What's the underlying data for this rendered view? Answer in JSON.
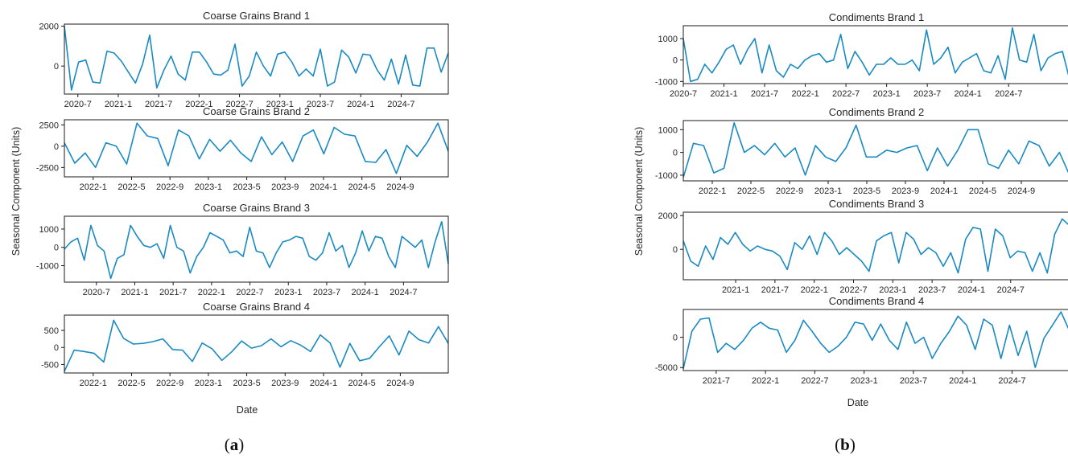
{
  "panels": [
    {
      "caption_prefix": "(",
      "caption_letter": "a",
      "caption_suffix": ")",
      "ylabel": "Seasonal Component (Units)",
      "xlabel": "Date"
    },
    {
      "caption_prefix": "(",
      "caption_letter": "b",
      "caption_suffix": ")",
      "ylabel": "Seasonal Component (Units)",
      "xlabel": "Date"
    }
  ],
  "colors": {
    "line": "#1a8ac2",
    "axis": "#1a1a1a",
    "text": "#262626"
  },
  "chart_data": [
    {
      "type": "line",
      "title": "Coarse Grains Brand 1",
      "x_start": "2020-05",
      "x_end": "2025-02",
      "xticks": [
        "2020-7",
        "2021-1",
        "2021-7",
        "2022-1",
        "2022-7",
        "2023-1",
        "2023-7",
        "2024-1",
        "2024-7"
      ],
      "yticks": [
        0,
        2000
      ],
      "ylim": [
        -1400,
        2100
      ],
      "series": [
        {
          "values": [
            2000,
            -1200,
            200,
            300,
            -800,
            -850,
            750,
            650,
            250,
            -300,
            -850,
            100,
            1550,
            -1100,
            -200,
            500,
            -400,
            -700,
            700,
            700,
            200,
            -400,
            -450,
            -200,
            1100,
            -1000,
            -500,
            700,
            0,
            -500,
            600,
            700,
            200,
            -500,
            -150,
            -500,
            850,
            -1000,
            -800,
            800,
            450,
            -350,
            600,
            550,
            -200,
            -700,
            350,
            -900,
            550,
            -950,
            -1000,
            900,
            900,
            -300,
            650
          ]
        }
      ]
    },
    {
      "type": "line",
      "title": "Coarse Grains Brand 2",
      "x_start": "2021-10",
      "x_end": "2025-02",
      "xticks": [
        "2022-1",
        "2022-5",
        "2022-9",
        "2023-1",
        "2023-5",
        "2023-9",
        "2024-1",
        "2024-5",
        "2024-9"
      ],
      "yticks": [
        -2500,
        0,
        2500
      ],
      "ylim": [
        -3600,
        3100
      ],
      "series": [
        {
          "values": [
            400,
            -2000,
            -800,
            -2500,
            400,
            0,
            -2100,
            2700,
            1200,
            900,
            -2300,
            1900,
            1200,
            -1500,
            800,
            -600,
            700,
            -800,
            -1800,
            1100,
            -1000,
            500,
            -1800,
            1200,
            1900,
            -900,
            2200,
            1400,
            1200,
            -1800,
            -1900,
            -400,
            -3200,
            100,
            -1200,
            500,
            2700,
            -600
          ]
        }
      ]
    },
    {
      "type": "line",
      "title": "Coarse Grains Brand 3",
      "x_start": "2020-02",
      "x_end": "2025-02",
      "xticks": [
        "2020-7",
        "2021-1",
        "2021-7",
        "2022-1",
        "2022-7",
        "2023-1",
        "2023-7",
        "2024-1",
        "2024-7"
      ],
      "yticks": [
        -1000,
        0,
        1000
      ],
      "ylim": [
        -1900,
        1700
      ],
      "series": [
        {
          "values": [
            -100,
            300,
            500,
            -700,
            1200,
            100,
            -200,
            -1700,
            -600,
            -400,
            1200,
            600,
            100,
            0,
            200,
            -600,
            1200,
            0,
            -200,
            -1400,
            -500,
            0,
            800,
            600,
            400,
            -300,
            -200,
            -500,
            1100,
            -200,
            -300,
            -1100,
            -300,
            300,
            400,
            600,
            500,
            -500,
            -700,
            -300,
            800,
            -200,
            100,
            -1100,
            -300,
            900,
            -200,
            600,
            500,
            -500,
            -1100,
            600,
            300,
            0,
            400,
            -1100,
            300,
            1400,
            -900
          ]
        }
      ]
    },
    {
      "type": "line",
      "title": "Coarse Grains Brand 4",
      "x_start": "2021-10",
      "x_end": "2025-02",
      "xticks": [
        "2022-1",
        "2022-5",
        "2022-9",
        "2023-1",
        "2023-5",
        "2023-9",
        "2024-1",
        "2024-5",
        "2024-9"
      ],
      "yticks": [
        -500,
        0,
        500
      ],
      "ylim": [
        -750,
        950
      ],
      "series": [
        {
          "values": [
            -700,
            -80,
            -120,
            -170,
            -430,
            800,
            270,
            100,
            120,
            170,
            250,
            -60,
            -80,
            -410,
            130,
            -40,
            -380,
            -130,
            190,
            -20,
            50,
            250,
            20,
            200,
            70,
            -120,
            370,
            130,
            -580,
            120,
            -390,
            -320,
            20,
            340,
            -220,
            480,
            230,
            130,
            610,
            120
          ]
        }
      ]
    },
    {
      "type": "line",
      "title": "Condiments Brand 1",
      "x_start": "2020-07",
      "x_end": "2025-04",
      "xticks": [
        "2020-7",
        "2021-1",
        "2021-7",
        "2022-1",
        "2022-7",
        "2023-1",
        "2023-7",
        "2024-1",
        "2024-7"
      ],
      "yticks": [
        -1000,
        0,
        1000
      ],
      "ylim": [
        -1100,
        1600
      ],
      "series": [
        {
          "values": [
            1000,
            -1000,
            -900,
            -200,
            -600,
            -100,
            500,
            700,
            -200,
            500,
            1000,
            -600,
            700,
            -500,
            -800,
            -200,
            -400,
            0,
            200,
            300,
            -100,
            0,
            1200,
            -400,
            400,
            -100,
            -700,
            -200,
            -200,
            100,
            -200,
            -200,
            0,
            -500,
            1400,
            -200,
            100,
            600,
            -600,
            -100,
            100,
            300,
            -500,
            -600,
            200,
            -900,
            1500,
            0,
            -100,
            1200,
            -500,
            100,
            300,
            400,
            -900
          ]
        }
      ]
    },
    {
      "type": "line",
      "title": "Condiments Brand 2",
      "x_start": "2021-10",
      "x_end": "2025-02",
      "xticks": [
        "2022-1",
        "2022-5",
        "2022-9",
        "2023-1",
        "2023-5",
        "2023-9",
        "2024-1",
        "2024-5",
        "2024-9"
      ],
      "yticks": [
        -1000,
        0,
        1000
      ],
      "ylim": [
        -1250,
        1400
      ],
      "series": [
        {
          "values": [
            -1100,
            400,
            300,
            -900,
            -700,
            1300,
            0,
            300,
            -100,
            400,
            -200,
            200,
            -1000,
            300,
            -200,
            -400,
            200,
            1200,
            -200,
            -200,
            100,
            0,
            200,
            300,
            -800,
            200,
            -600,
            100,
            1000,
            1000,
            -500,
            -700,
            100,
            -500,
            500,
            300,
            -600,
            0,
            -1000
          ]
        }
      ]
    },
    {
      "type": "line",
      "title": "Condiments Brand 3",
      "x_start": "2020-05",
      "x_end": "2025-04",
      "xticks": [
        "2021-1",
        "2021-7",
        "2022-1",
        "2022-7",
        "2023-1",
        "2023-7",
        "2024-1",
        "2024-7"
      ],
      "yticks": [
        0,
        2000
      ],
      "ylim": [
        -1800,
        2200
      ],
      "series": [
        {
          "values": [
            500,
            -700,
            -1000,
            200,
            -600,
            700,
            300,
            1000,
            300,
            -100,
            200,
            0,
            -100,
            -400,
            -1200,
            400,
            0,
            800,
            -300,
            1000,
            500,
            -300,
            100,
            -300,
            -700,
            -1300,
            500,
            800,
            1000,
            -800,
            1000,
            600,
            -300,
            100,
            -200,
            -1000,
            -200,
            -1400,
            600,
            1300,
            1200,
            -1300,
            1200,
            800,
            -500,
            -100,
            -200,
            -1300,
            -200,
            -1400,
            900,
            1800,
            1400
          ]
        }
      ]
    },
    {
      "type": "line",
      "title": "Condiments Brand 4",
      "x_start": "2021-03",
      "x_end": "2025-02",
      "xticks": [
        "2021-7",
        "2022-1",
        "2022-7",
        "2023-1",
        "2023-7",
        "2024-1",
        "2024-7"
      ],
      "yticks": [
        -5000,
        0
      ],
      "ylim": [
        -5500,
        4600
      ],
      "series": [
        {
          "values": [
            -5200,
            1000,
            3000,
            3200,
            -2500,
            -1000,
            -2000,
            -500,
            1500,
            2500,
            1500,
            1200,
            -2500,
            -500,
            2800,
            1000,
            -1000,
            -2500,
            -1500,
            0,
            2500,
            2200,
            -500,
            2200,
            -500,
            -2000,
            2500,
            -1000,
            0,
            -3500,
            -1000,
            1000,
            3500,
            2000,
            -2000,
            3000,
            2000,
            -3500,
            2000,
            -3000,
            1000,
            -5000,
            -200,
            2000,
            4200,
            1000
          ]
        }
      ]
    }
  ]
}
